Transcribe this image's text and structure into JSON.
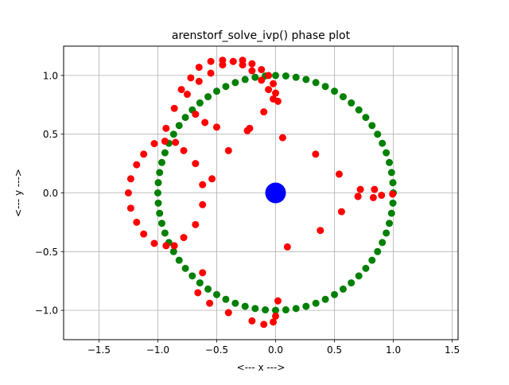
{
  "chart_data": {
    "type": "scatter",
    "title": "arenstorf_solve_ivp() phase plot",
    "xlabel": "<---  x  --->",
    "ylabel": "<---  y  --->",
    "xlim": [
      -1.8,
      1.55
    ],
    "ylim": [
      -1.25,
      1.25
    ],
    "xticks": [
      -1.5,
      -1.0,
      -0.5,
      0.0,
      0.5,
      1.0,
      1.5
    ],
    "xtick_labels": [
      "−1.5",
      "−1.0",
      "−0.5",
      "0.0",
      "0.5",
      "1.0",
      "1.5"
    ],
    "yticks": [
      -1.0,
      -0.5,
      0.0,
      0.5,
      1.0
    ],
    "ytick_labels": [
      "−1.0",
      "−0.5",
      "0.0",
      "0.5",
      "1.0"
    ],
    "grid": true,
    "colors": {
      "trajectory": "#ff0000",
      "moon_orbit": "#008000",
      "earth": "#0000ff",
      "grid": "#b0b0b0"
    },
    "series": [
      {
        "marker": "circle",
        "color": "#ff0000",
        "x": [
          0.994,
          0.9,
          0.84,
          0.72,
          0.7,
          0.56,
          0.54,
          0.34,
          0.06,
          -0.1,
          -0.22,
          -0.24,
          -0.4,
          -0.5,
          -0.6,
          -0.68,
          -0.75,
          -0.65,
          -0.55,
          -0.45,
          -0.36,
          -0.28,
          -0.2,
          -0.12,
          -0.06,
          -0.02,
          0.0,
          0.02,
          -0.02,
          -0.06,
          -0.12,
          -0.2,
          -0.28,
          -0.36,
          -0.45,
          -0.55,
          -0.65,
          -0.72,
          -0.8,
          -0.86,
          -0.93,
          -1.03,
          -1.12,
          -1.18,
          -1.23,
          -1.25,
          -1.23,
          -1.18,
          -1.12,
          -1.03,
          -0.93,
          -0.86,
          -0.78,
          -0.68,
          -0.62,
          -0.62,
          -0.54,
          -0.68,
          -0.85,
          -0.94,
          -0.78,
          -0.62,
          -0.66,
          -0.56,
          -0.4,
          -0.2,
          -0.1,
          -0.02,
          0.0,
          0.02,
          0.1,
          0.38,
          0.7,
          0.83
        ],
        "y": [
          -0.01,
          -0.02,
          0.03,
          0.03,
          -0.03,
          -0.16,
          0.16,
          0.33,
          0.47,
          0.69,
          0.55,
          0.53,
          0.36,
          0.56,
          0.6,
          0.67,
          0.84,
          0.95,
          1.02,
          1.09,
          1.12,
          1.13,
          1.1,
          1.05,
          1.0,
          0.93,
          0.85,
          0.78,
          0.8,
          0.88,
          0.96,
          1.04,
          1.09,
          1.12,
          1.13,
          1.12,
          1.07,
          0.98,
          0.88,
          0.72,
          0.55,
          0.42,
          0.33,
          0.24,
          0.12,
          0.0,
          -0.13,
          -0.25,
          -0.35,
          -0.43,
          -0.45,
          -0.45,
          -0.38,
          -0.27,
          -0.1,
          0.07,
          0.12,
          0.25,
          0.43,
          0.44,
          0.36,
          -0.68,
          -0.85,
          -0.94,
          -1.02,
          -1.09,
          -1.12,
          -1.1,
          -1.05,
          -0.92,
          -0.46,
          -0.32,
          -0.03,
          -0.04
        ]
      },
      {
        "marker": "circle",
        "color": "#008000",
        "parametric": "unit-circle",
        "radius": 1.0,
        "count": 72
      },
      {
        "marker": "circle",
        "color": "#0000ff",
        "x": [
          0.0
        ],
        "y": [
          0.0
        ]
      }
    ]
  }
}
